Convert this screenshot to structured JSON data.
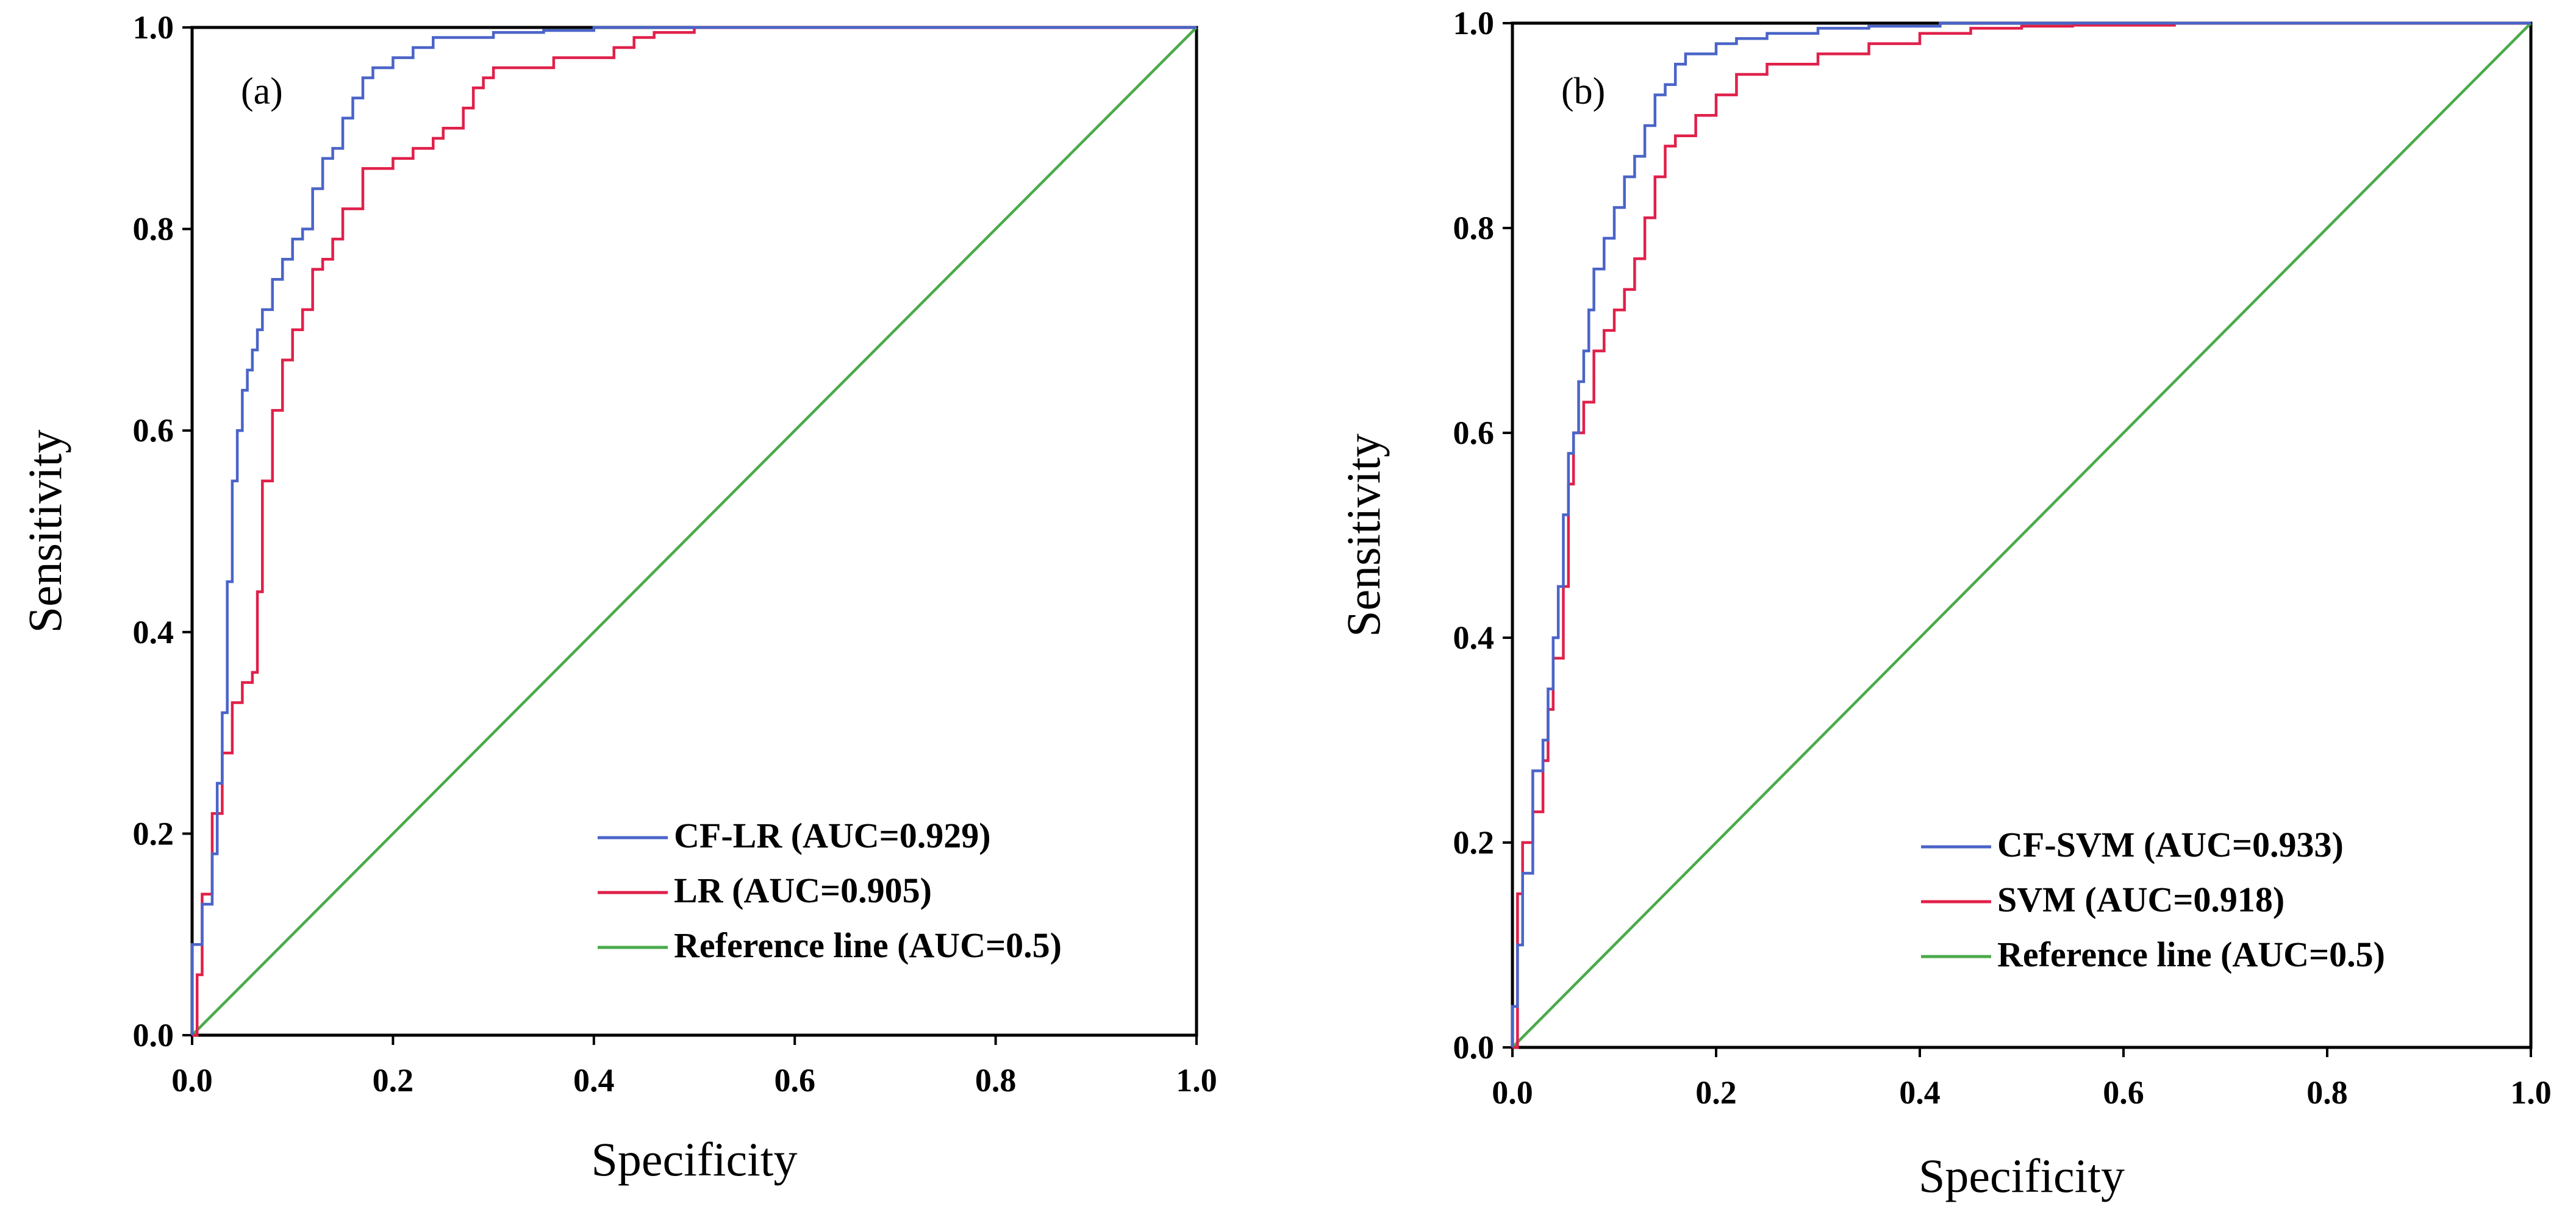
{
  "colors": {
    "blue": "#4a64c8",
    "red": "#e0204a",
    "green": "#4aaa4a",
    "axis": "#000000"
  },
  "chart_data": [
    {
      "type": "line",
      "panel_label": "(a)",
      "xlabel": "Specificity",
      "ylabel": "Sensitivity",
      "xlim": [
        0,
        1
      ],
      "ylim": [
        0,
        1
      ],
      "xticks": [
        "0.0",
        "0.2",
        "0.4",
        "0.6",
        "0.8",
        "1.0"
      ],
      "yticks": [
        "0.0",
        "0.2",
        "0.4",
        "0.6",
        "0.8",
        "1.0"
      ],
      "legend_position": "bottom-right",
      "series": [
        {
          "name": "CF-LR (AUC=0.929)",
          "color": "blue",
          "x": [
            0,
            0,
            0.01,
            0.02,
            0.025,
            0.03,
            0.035,
            0.04,
            0.045,
            0.05,
            0.055,
            0.06,
            0.065,
            0.07,
            0.08,
            0.09,
            0.1,
            0.11,
            0.12,
            0.13,
            0.14,
            0.15,
            0.16,
            0.17,
            0.18,
            0.2,
            0.22,
            0.24,
            0.3,
            0.35,
            0.4,
            1.0
          ],
          "y": [
            0,
            0.09,
            0.13,
            0.18,
            0.25,
            0.32,
            0.45,
            0.55,
            0.6,
            0.64,
            0.66,
            0.68,
            0.7,
            0.72,
            0.75,
            0.77,
            0.79,
            0.8,
            0.84,
            0.87,
            0.88,
            0.91,
            0.93,
            0.95,
            0.96,
            0.97,
            0.98,
            0.99,
            0.995,
            0.997,
            1.0,
            1.0
          ]
        },
        {
          "name": "LR (AUC=0.905)",
          "color": "red",
          "x": [
            0,
            0.005,
            0.01,
            0.02,
            0.03,
            0.04,
            0.05,
            0.06,
            0.065,
            0.07,
            0.08,
            0.09,
            0.1,
            0.11,
            0.12,
            0.13,
            0.14,
            0.15,
            0.17,
            0.2,
            0.22,
            0.24,
            0.25,
            0.27,
            0.28,
            0.29,
            0.3,
            0.33,
            0.36,
            0.4,
            0.42,
            0.44,
            0.46,
            0.5,
            0.53,
            1.0
          ],
          "y": [
            0,
            0.06,
            0.14,
            0.22,
            0.28,
            0.33,
            0.35,
            0.36,
            0.44,
            0.55,
            0.62,
            0.67,
            0.7,
            0.72,
            0.76,
            0.77,
            0.79,
            0.82,
            0.86,
            0.87,
            0.88,
            0.89,
            0.9,
            0.92,
            0.94,
            0.95,
            0.96,
            0.96,
            0.97,
            0.97,
            0.98,
            0.99,
            0.995,
            1.0,
            1.0,
            1.0
          ]
        },
        {
          "name": "Reference line (AUC=0.5)",
          "color": "green",
          "x": [
            0,
            1
          ],
          "y": [
            0,
            1
          ]
        }
      ]
    },
    {
      "type": "line",
      "panel_label": "(b)",
      "xlabel": "Specificity",
      "ylabel": "Sensitivity",
      "xlim": [
        0,
        1
      ],
      "ylim": [
        0,
        1
      ],
      "xticks": [
        "0.0",
        "0.2",
        "0.4",
        "0.6",
        "0.8",
        "1.0"
      ],
      "yticks": [
        "0.0",
        "0.2",
        "0.4",
        "0.6",
        "0.8",
        "1.0"
      ],
      "legend_position": "bottom-right",
      "series": [
        {
          "name": "CF-SVM (AUC=0.933)",
          "color": "blue",
          "x": [
            0,
            0,
            0.005,
            0.01,
            0.02,
            0.03,
            0.035,
            0.04,
            0.045,
            0.05,
            0.055,
            0.06,
            0.065,
            0.07,
            0.075,
            0.08,
            0.09,
            0.1,
            0.11,
            0.12,
            0.13,
            0.14,
            0.15,
            0.16,
            0.17,
            0.18,
            0.2,
            0.22,
            0.25,
            0.3,
            0.35,
            0.42,
            1.0
          ],
          "y": [
            0,
            0.04,
            0.1,
            0.17,
            0.27,
            0.3,
            0.35,
            0.4,
            0.45,
            0.52,
            0.58,
            0.6,
            0.65,
            0.68,
            0.72,
            0.76,
            0.79,
            0.82,
            0.85,
            0.87,
            0.9,
            0.93,
            0.94,
            0.96,
            0.97,
            0.97,
            0.98,
            0.985,
            0.99,
            0.995,
            0.997,
            1.0,
            1.0
          ]
        },
        {
          "name": "SVM (AUC=0.918)",
          "color": "red",
          "x": [
            0,
            0.005,
            0.01,
            0.02,
            0.03,
            0.035,
            0.04,
            0.05,
            0.055,
            0.06,
            0.07,
            0.08,
            0.09,
            0.1,
            0.11,
            0.12,
            0.13,
            0.14,
            0.15,
            0.16,
            0.18,
            0.2,
            0.22,
            0.25,
            0.3,
            0.35,
            0.4,
            0.45,
            0.5,
            0.55,
            0.65,
            1.0
          ],
          "y": [
            0,
            0.15,
            0.2,
            0.23,
            0.28,
            0.33,
            0.38,
            0.45,
            0.55,
            0.6,
            0.63,
            0.68,
            0.7,
            0.72,
            0.74,
            0.77,
            0.81,
            0.85,
            0.88,
            0.89,
            0.91,
            0.93,
            0.95,
            0.96,
            0.97,
            0.98,
            0.99,
            0.995,
            0.997,
            0.998,
            1.0,
            1.0
          ]
        },
        {
          "name": "Reference line (AUC=0.5)",
          "color": "green",
          "x": [
            0,
            1
          ],
          "y": [
            0,
            1
          ]
        }
      ]
    }
  ]
}
